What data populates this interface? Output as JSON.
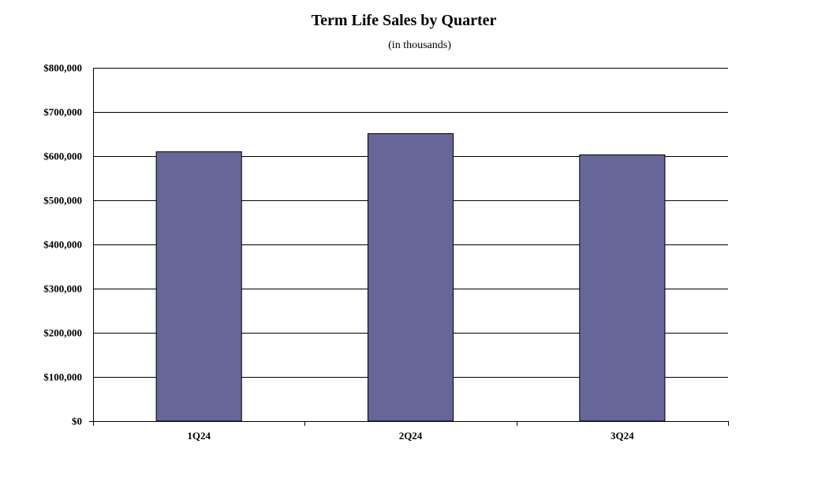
{
  "chart_data": {
    "type": "bar",
    "title": "Term Life Sales by Quarter",
    "subtitle": "(in thousands)",
    "categories": [
      "1Q24",
      "2Q24",
      "3Q24"
    ],
    "values": [
      610000,
      651000,
      603000
    ],
    "ylim": [
      0,
      800000
    ],
    "yticks": [
      0,
      100000,
      200000,
      300000,
      400000,
      500000,
      600000,
      700000,
      800000
    ],
    "ytick_labels": [
      "$0",
      "$100,000",
      "$200,000",
      "$300,000",
      "$400,000",
      "$500,000",
      "$600,000",
      "$700,000",
      "$800,000"
    ],
    "grid": true,
    "legend": "none",
    "colors": {
      "bar": "#666699",
      "bar_border": "#000000",
      "grid": "#000000"
    }
  }
}
